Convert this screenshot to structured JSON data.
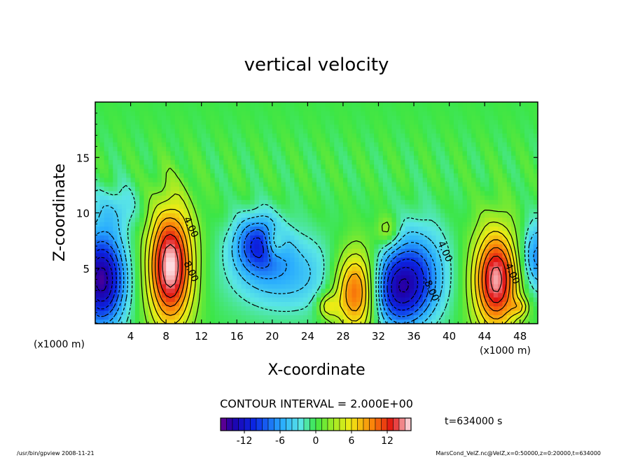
{
  "chart_data": {
    "type": "heatmap",
    "title": "vertical velocity",
    "xlabel": "X-coordinate",
    "ylabel": "Z-coordinate",
    "x_unit_left": "(x1000 m)",
    "x_unit_right": "(x1000 m)",
    "xlim": [
      0,
      50
    ],
    "ylim": [
      0,
      20
    ],
    "x_ticks": [
      "4",
      "8",
      "12",
      "16",
      "20",
      "24",
      "28",
      "32",
      "36",
      "40",
      "44",
      "48"
    ],
    "x_tick_values": [
      4,
      8,
      12,
      16,
      20,
      24,
      28,
      32,
      36,
      40,
      44,
      48
    ],
    "y_ticks": [
      "5",
      "10",
      "15"
    ],
    "y_tick_values": [
      5,
      10,
      15
    ],
    "contour_interval_label": "CONTOUR INTERVAL = 2.000E+00",
    "time_label": "t=634000 s",
    "colorbar": {
      "min": -16,
      "max": 16,
      "ticks": [
        "-12",
        "-6",
        "0",
        "6",
        "12"
      ],
      "tick_values": [
        -12,
        -6,
        0,
        6,
        12
      ]
    },
    "contour_labels": [
      {
        "text": "4.00",
        "x": 10.5,
        "z": 8.6
      },
      {
        "text": "8.00",
        "x": 10.5,
        "z": 4.6
      },
      {
        "text": "4.00",
        "x": 39.2,
        "z": 6.4
      },
      {
        "text": "-8.00",
        "x": 37.6,
        "z": 3.0
      },
      {
        "text": "4.00",
        "x": 46.8,
        "z": 4.4
      }
    ],
    "features": [
      {
        "x": 0.7,
        "z": 4.0,
        "value": -15,
        "sx": 1.9,
        "sz": 3.0
      },
      {
        "x": 8.5,
        "z": 5.2,
        "value": 16,
        "sx": 1.8,
        "sz": 3.8
      },
      {
        "x": 18.5,
        "z": 7.3,
        "value": -9,
        "sx": 2.0,
        "sz": 1.8
      },
      {
        "x": 20.3,
        "z": 7.3,
        "value": 5,
        "sx": 0.8,
        "sz": 1.0
      },
      {
        "x": 21.5,
        "z": 4.5,
        "value": -5,
        "sx": 4.5,
        "sz": 2.5
      },
      {
        "x": 29.6,
        "z": 3.0,
        "value": 13,
        "sx": 1.8,
        "sz": 2.6
      },
      {
        "x": 34.0,
        "z": 3.0,
        "value": -11,
        "sx": 2.5,
        "sz": 2.4
      },
      {
        "x": 36.4,
        "z": 5.0,
        "value": -6,
        "sx": 2.5,
        "sz": 3.0
      },
      {
        "x": 45.3,
        "z": 4.0,
        "value": 15,
        "sx": 1.8,
        "sz": 3.2
      },
      {
        "x": 49.8,
        "z": 6.0,
        "value": -7,
        "sx": 1.3,
        "sz": 2.2
      },
      {
        "x": 26.2,
        "z": 1.6,
        "value": 5,
        "sx": 0.8,
        "sz": 0.8
      },
      {
        "x": 33.0,
        "z": 8.4,
        "value": 4,
        "sx": 0.9,
        "sz": 1.0
      },
      {
        "x": 48.0,
        "z": 1.5,
        "value": 4,
        "sx": 0.7,
        "sz": 0.6
      },
      {
        "x": 2.5,
        "z": 10.5,
        "value": -3,
        "sx": 2.0,
        "sz": 1.5
      }
    ]
  },
  "footer": {
    "left": "/usr/bin/gpview   2008-11-21",
    "right": "MarsCond_VelZ.nc@VelZ,x=0:50000,z=0:20000,t=634000"
  },
  "colors": {
    "frame": "#000000",
    "background": "#ffffff"
  }
}
